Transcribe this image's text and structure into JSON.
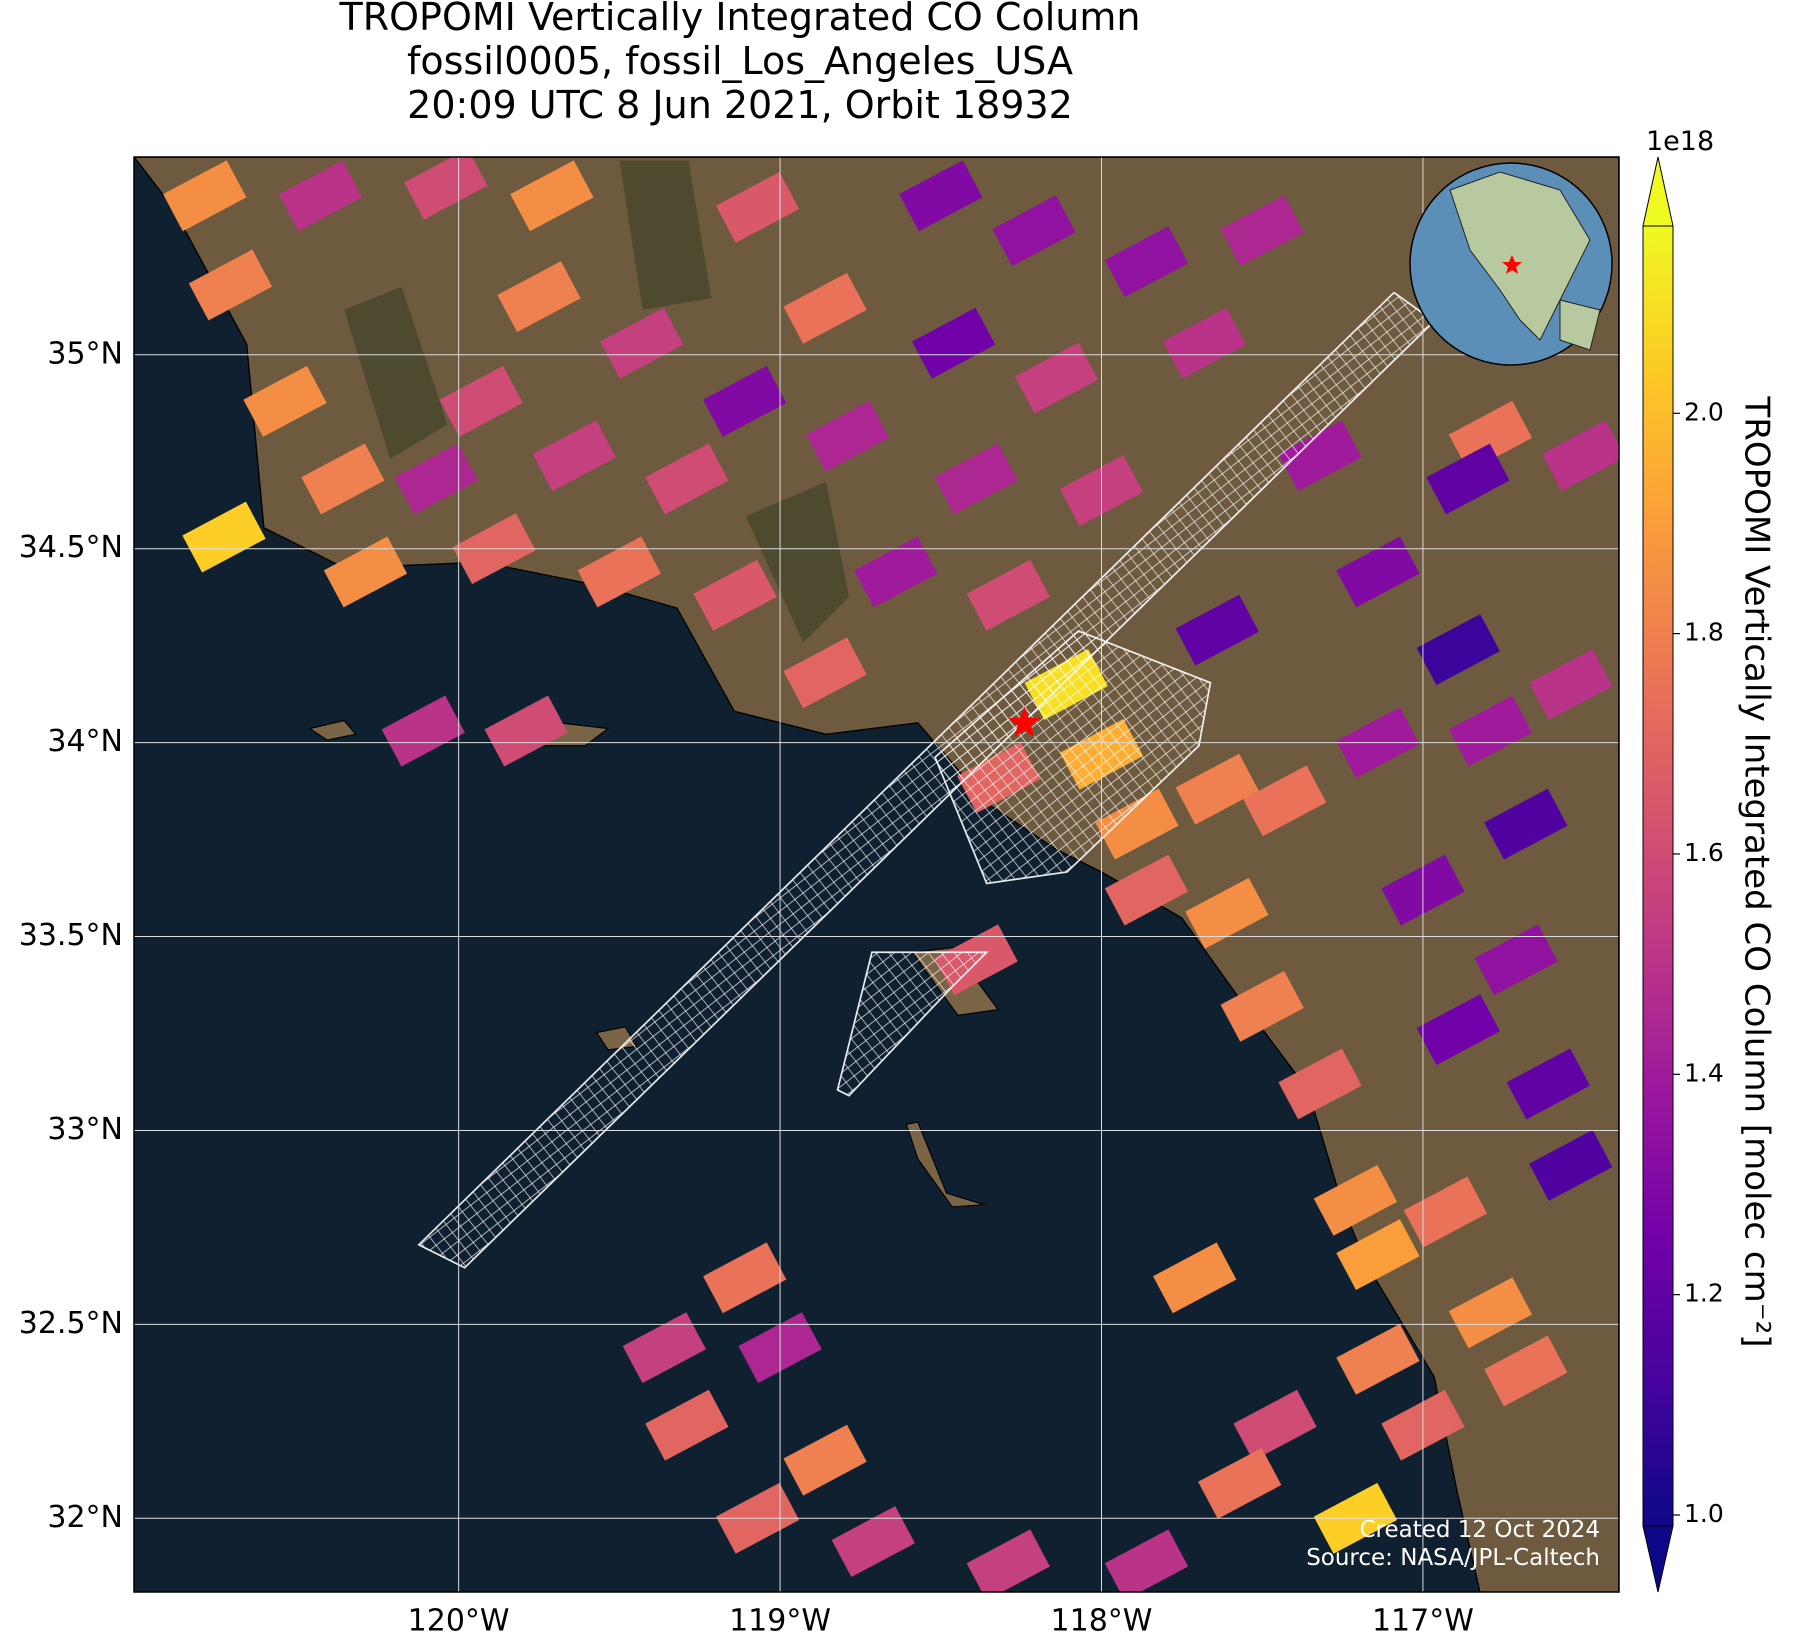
{
  "chart_data": {
    "type": "map",
    "title": [
      "TROPOMI Vertically Integrated CO Column",
      "fossil0005, fossil_Los_Angeles_USA",
      "20:09 UTC 8 Jun 2021, Orbit 18932"
    ],
    "xlim": [
      -121.01,
      -116.39
    ],
    "ylim": [
      31.81,
      35.51
    ],
    "xticks": [
      {
        "value": -120,
        "label": "120°W"
      },
      {
        "value": -119,
        "label": "119°W"
      },
      {
        "value": -118,
        "label": "118°W"
      },
      {
        "value": -117,
        "label": "117°W"
      }
    ],
    "yticks": [
      {
        "value": 32,
        "label": "32°N"
      },
      {
        "value": 32.5,
        "label": "32.5°N"
      },
      {
        "value": 33,
        "label": "33°N"
      },
      {
        "value": 33.5,
        "label": "33.5°N"
      },
      {
        "value": 34,
        "label": "34°N"
      },
      {
        "value": 34.5,
        "label": "34.5°N"
      },
      {
        "value": 35,
        "label": "35°N"
      }
    ],
    "grid": true,
    "site": {
      "lon": -118.24,
      "lat": 34.05,
      "color": "#ff0000"
    },
    "colorbar": {
      "label": "TROPOMI Vertically Integrated CO Column [molec cm⁻²]",
      "offset_label": "1e18",
      "clim": [
        0.99,
        2.17
      ],
      "ticks": [
        {
          "value": 1,
          "label": "1.0"
        },
        1.2,
        1.4,
        1.6,
        1.8,
        {
          "value": 2,
          "label": "2.0"
        }
      ],
      "colormap": [
        "#0d0887",
        "#46039f",
        "#7201a8",
        "#9c179e",
        "#bd3786",
        "#d8576b",
        "#ed7953",
        "#fb9f3a",
        "#fdca26",
        "#f0f921"
      ]
    },
    "pixels": {
      "lon": [
        -120.79,
        -120.71,
        -120.54,
        -120.36,
        -120.29,
        -120.73,
        -120.43,
        -120.04,
        -119.71,
        -119.75,
        -119.93,
        -120.07,
        -119.89,
        -119.64,
        -119.5,
        -119.43,
        -119.29,
        -119.14,
        -119.07,
        -119.11,
        -118.86,
        -118.79,
        -118.86,
        -118.64,
        -118.5,
        -118.46,
        -118.39,
        -118.29,
        -118.21,
        -118.14,
        -118.0,
        -117.86,
        -117.68,
        -117.5,
        -117.32,
        -117.14,
        -117.64,
        -116.89,
        -116.79,
        -116.68,
        -116.54,
        -116.5,
        -116.79,
        -116.86,
        -117.14,
        -117.0,
        -116.71,
        -116.89,
        -116.61,
        -116.54,
        -118.11,
        -118.0,
        -118.32,
        -117.89,
        -117.64,
        -117.43,
        -117.86,
        -117.61,
        -117.5,
        -117.32,
        -117.21,
        -117.14,
        -116.93,
        -116.79,
        -116.68,
        -117.21,
        -117.0,
        -117.14,
        -119.36,
        -119.11,
        -119.29,
        -119.0,
        -118.86,
        -119.07,
        -118.71,
        -117.71,
        -117.46,
        -117.57,
        -117.86,
        -118.29,
        -120.11,
        -119.79,
        -118.39
      ],
      "lat": [
        35.41,
        35.18,
        34.88,
        34.68,
        34.44,
        34.53,
        35.41,
        35.44,
        35.41,
        35.15,
        34.88,
        34.68,
        34.5,
        34.74,
        34.44,
        35.03,
        34.68,
        34.38,
        35.38,
        34.88,
        35.12,
        34.79,
        34.18,
        34.44,
        35.41,
        35.03,
        34.68,
        34.38,
        35.32,
        34.94,
        34.65,
        35.24,
        35.03,
        35.32,
        34.74,
        34.44,
        34.29,
        34.24,
        34.03,
        33.79,
        34.15,
        34.74,
        34.79,
        34.68,
        34.0,
        33.62,
        33.44,
        33.26,
        33.12,
        32.91,
        34.15,
        33.97,
        33.91,
        33.79,
        33.88,
        33.85,
        33.62,
        33.56,
        33.32,
        33.12,
        32.82,
        32.68,
        32.79,
        32.53,
        32.38,
        32.0,
        32.24,
        32.41,
        32.44,
        32.62,
        32.24,
        32.44,
        32.15,
        32.0,
        31.94,
        32.62,
        32.24,
        32.09,
        31.88,
        31.88,
        34.03,
        34.03,
        33.44
      ],
      "values": [
        1.85,
        1.8,
        1.85,
        1.8,
        1.85,
        2.05,
        1.5,
        1.6,
        1.85,
        1.8,
        1.6,
        1.45,
        1.7,
        1.55,
        1.75,
        1.55,
        1.6,
        1.65,
        1.65,
        1.3,
        1.75,
        1.45,
        1.7,
        1.4,
        1.3,
        1.25,
        1.45,
        1.6,
        1.35,
        1.55,
        1.55,
        1.35,
        1.5,
        1.45,
        1.4,
        1.3,
        1.2,
        1.1,
        1.4,
        1.15,
        1.5,
        1.5,
        1.75,
        1.2,
        1.4,
        1.3,
        1.35,
        1.25,
        1.2,
        1.15,
        2.1,
        1.95,
        1.7,
        1.85,
        1.8,
        1.75,
        1.7,
        1.85,
        1.8,
        1.7,
        1.85,
        1.9,
        1.75,
        1.85,
        1.75,
        2.05,
        1.7,
        1.8,
        1.55,
        1.75,
        1.7,
        1.45,
        1.8,
        1.7,
        1.55,
        1.85,
        1.6,
        1.75,
        1.5,
        1.55,
        1.5,
        1.6,
        1.65
      ]
    },
    "credits": [
      "Created 12 Oct 2024",
      "Source: NASA/JPL-Caltech"
    ]
  }
}
